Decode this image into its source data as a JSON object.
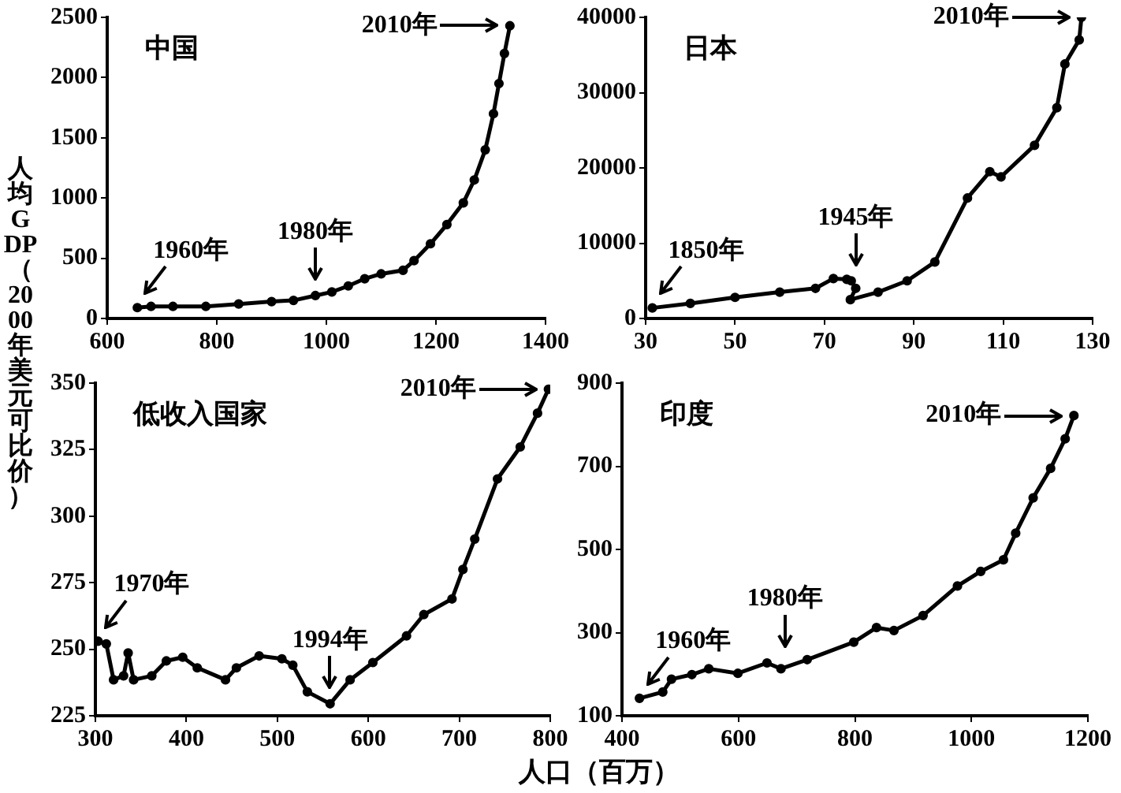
{
  "chart_data": [
    {
      "type": "line",
      "title": "中国",
      "ylabel": "人均GDP（2000年美元可比价）",
      "color": "#000000",
      "marker": "circle",
      "grid": false,
      "legend": false,
      "x": [
        655,
        680,
        720,
        780,
        840,
        900,
        940,
        980,
        1010,
        1040,
        1070,
        1100,
        1140,
        1160,
        1190,
        1220,
        1250,
        1270,
        1290,
        1305,
        1315,
        1325,
        1335
      ],
      "values": [
        90,
        100,
        100,
        100,
        120,
        140,
        150,
        190,
        220,
        270,
        330,
        370,
        400,
        480,
        620,
        780,
        960,
        1150,
        1400,
        1700,
        1950,
        2200,
        2430
      ],
      "xlim": [
        600,
        1400
      ],
      "xticks": [
        600,
        800,
        1000,
        1200,
        1400
      ],
      "ylim": [
        0,
        2500
      ],
      "yticks": [
        0,
        500,
        1000,
        1500,
        2000,
        2500
      ],
      "annotations": [
        {
          "text": "1960年",
          "x": 655,
          "y": 90
        },
        {
          "text": "1980年",
          "x": 980,
          "y": 190
        },
        {
          "text": "2010年",
          "x": 1335,
          "y": 2430
        }
      ]
    },
    {
      "type": "line",
      "title": "日本",
      "color": "#000000",
      "marker": "circle",
      "grid": false,
      "legend": false,
      "x": [
        31.5,
        40,
        50,
        60,
        68,
        72,
        75,
        76,
        77,
        75.8,
        82,
        88.5,
        94.7,
        102,
        107,
        109.5,
        117,
        122,
        123.8,
        127,
        127.5
      ],
      "values": [
        1400,
        2000,
        2800,
        3500,
        4000,
        5300,
        5200,
        5000,
        4000,
        2500,
        3500,
        5000,
        7500,
        16000,
        19500,
        18800,
        23000,
        28000,
        33800,
        37000,
        40000
      ],
      "xlim": [
        30,
        130
      ],
      "xticks": [
        30,
        50,
        70,
        90,
        110,
        130
      ],
      "ylim": [
        0,
        40000
      ],
      "yticks": [
        0,
        10000,
        20000,
        30000,
        40000
      ],
      "annotations": [
        {
          "text": "1850年",
          "x": 31.5,
          "y": 1400
        },
        {
          "text": "1945年",
          "x": 77,
          "y": 5000
        },
        {
          "text": "2010年",
          "x": 127.5,
          "y": 40000
        }
      ]
    },
    {
      "type": "line",
      "title": "低收入国家",
      "color": "#000000",
      "marker": "circle",
      "grid": false,
      "legend": false,
      "x": [
        303,
        312,
        320,
        331,
        336,
        342,
        362,
        378,
        396,
        412,
        443,
        455,
        480,
        505,
        517,
        533,
        558,
        580,
        605,
        642,
        661,
        692,
        704,
        717,
        742,
        767,
        786,
        798
      ],
      "values": [
        253,
        252,
        238.5,
        240,
        248.6,
        238.5,
        240,
        245.6,
        247,
        243,
        238.5,
        243,
        247.5,
        246.4,
        244,
        234,
        229.5,
        238.5,
        245,
        255,
        263,
        268.9,
        280,
        291.4,
        314,
        326,
        338.7,
        347.7
      ],
      "xlim": [
        300,
        800
      ],
      "xticks": [
        300,
        400,
        500,
        600,
        700,
        800
      ],
      "ylim": [
        225,
        350
      ],
      "yticks": [
        225,
        250,
        275,
        300,
        325,
        350
      ],
      "annotations": [
        {
          "text": "1970年",
          "x": 303,
          "y": 253
        },
        {
          "text": "1994年",
          "x": 558,
          "y": 229.5
        },
        {
          "text": "2010年",
          "x": 798,
          "y": 347.7
        }
      ]
    },
    {
      "type": "line",
      "title": "印度",
      "xlabel": "人口（百万）",
      "color": "#000000",
      "marker": "circle",
      "grid": false,
      "legend": false,
      "x": [
        430,
        470,
        485,
        520,
        549,
        599,
        649,
        673,
        718,
        798,
        837,
        867,
        917,
        976,
        1016,
        1055,
        1076,
        1106,
        1136,
        1161,
        1176
      ],
      "values": [
        142,
        157,
        188,
        199,
        213,
        202,
        227,
        213,
        235,
        277,
        312,
        305,
        341,
        412,
        447,
        475,
        539,
        624,
        695,
        766,
        822
      ],
      "xlim": [
        400,
        1200
      ],
      "xticks": [
        400,
        600,
        800,
        1000,
        1200
      ],
      "ylim": [
        100,
        900
      ],
      "yticks": [
        100,
        300,
        500,
        700,
        900
      ],
      "annotations": [
        {
          "text": "1960年",
          "x": 430,
          "y": 142
        },
        {
          "text": "1980年",
          "x": 680,
          "y": 230
        },
        {
          "text": "2010年",
          "x": 1176,
          "y": 822
        }
      ]
    }
  ]
}
